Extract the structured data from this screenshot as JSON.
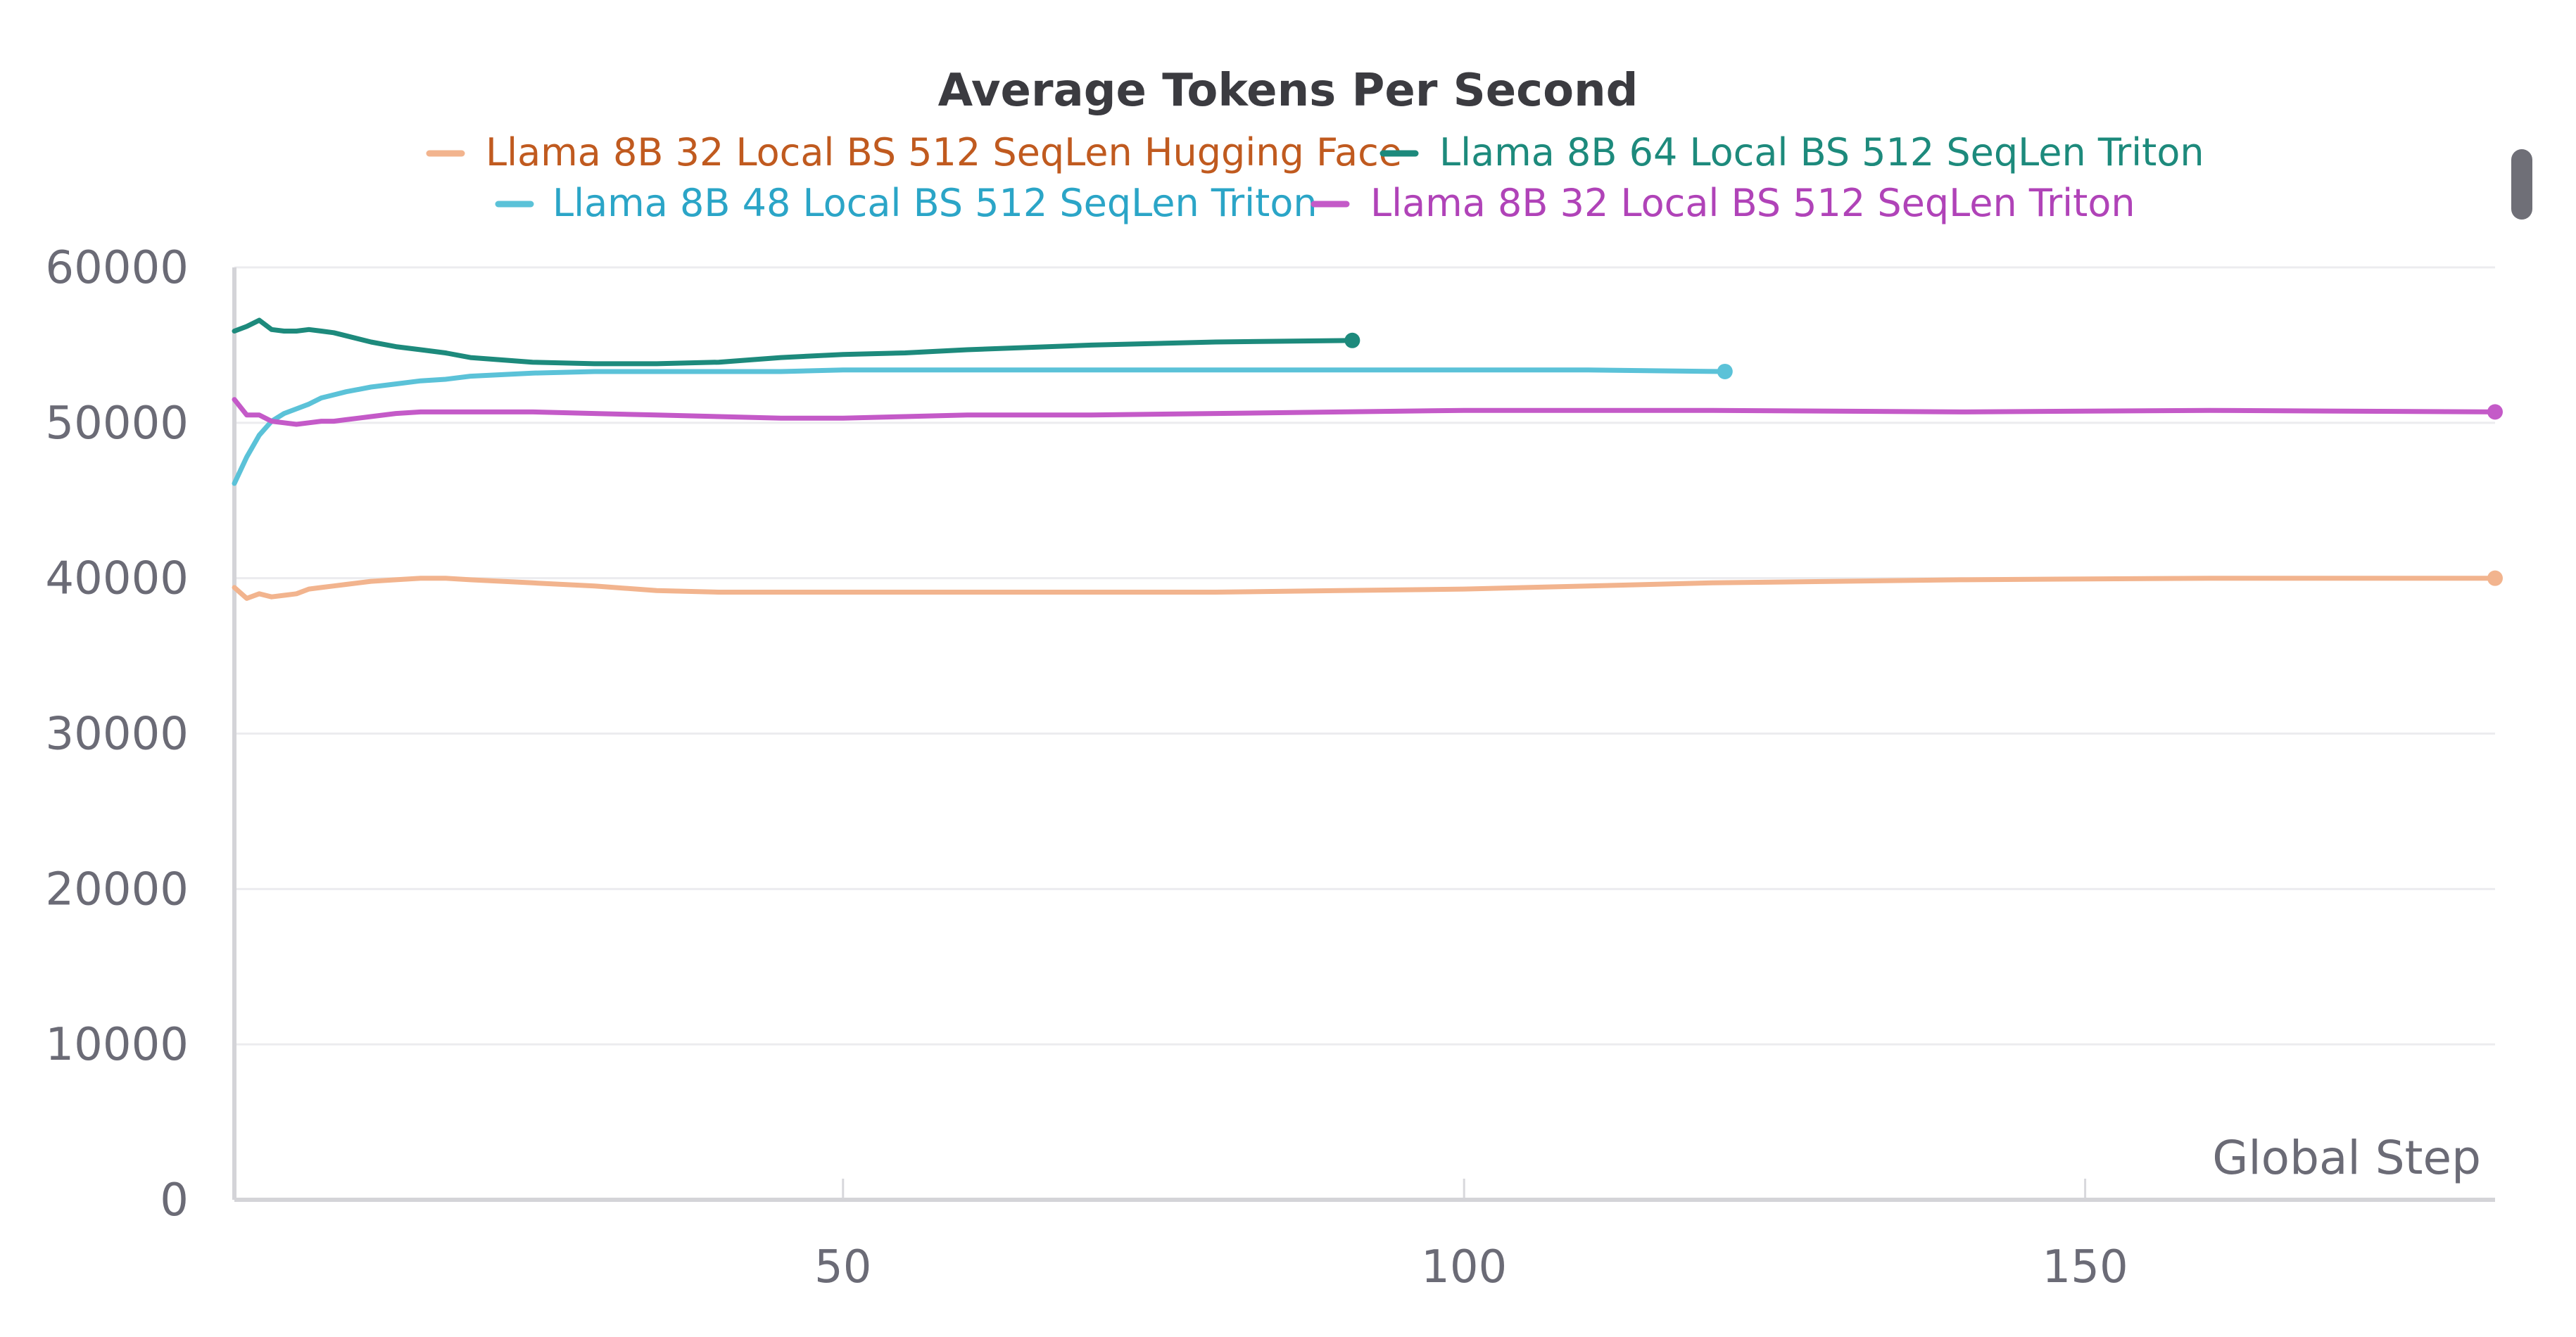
{
  "chart_data": {
    "type": "line",
    "title": "Average Tokens Per Second",
    "xlabel": "Global Step",
    "ylabel": "",
    "xlim": [
      1,
      183
    ],
    "ylim": [
      0,
      60000
    ],
    "x_ticks": [
      50,
      100,
      150
    ],
    "y_ticks": [
      0,
      10000,
      20000,
      30000,
      40000,
      50000,
      60000
    ],
    "grid": true,
    "legend_position": "top-center",
    "series": [
      {
        "name": "Llama 8B 32 Local BS 512 SeqLen Hugging Face",
        "color": "#f2b48e",
        "legend_text_color": "#c05a1f",
        "x": [
          1,
          2,
          3,
          4,
          5,
          6,
          7,
          8,
          9,
          10,
          12,
          14,
          16,
          18,
          20,
          25,
          30,
          35,
          40,
          45,
          50,
          60,
          70,
          80,
          90,
          100,
          120,
          140,
          160,
          183
        ],
        "y": [
          39400,
          38700,
          39000,
          38800,
          38900,
          39000,
          39300,
          39400,
          39500,
          39600,
          39800,
          39900,
          40000,
          40000,
          39900,
          39700,
          39500,
          39200,
          39100,
          39100,
          39100,
          39100,
          39100,
          39100,
          39200,
          39300,
          39700,
          39900,
          40000,
          40000
        ]
      },
      {
        "name": "Llama 8B 64 Local BS 512 SeqLen Triton",
        "color": "#1d8a7c",
        "legend_text_color": "#1d8a7c",
        "x": [
          1,
          2,
          3,
          4,
          5,
          6,
          7,
          8,
          9,
          10,
          12,
          14,
          16,
          18,
          20,
          25,
          30,
          35,
          40,
          45,
          50,
          55,
          60,
          70,
          80,
          91
        ],
        "y": [
          55900,
          56200,
          56600,
          56000,
          55900,
          55900,
          56000,
          55900,
          55800,
          55600,
          55200,
          54900,
          54700,
          54500,
          54200,
          53900,
          53800,
          53800,
          53900,
          54200,
          54400,
          54500,
          54700,
          55000,
          55200,
          55300
        ]
      },
      {
        "name": "Llama 8B 48 Local BS 512 SeqLen Triton",
        "color": "#5bc2d8",
        "legend_text_color": "#2ba5c7",
        "x": [
          1,
          2,
          3,
          4,
          5,
          6,
          7,
          8,
          9,
          10,
          12,
          14,
          16,
          18,
          20,
          25,
          30,
          35,
          40,
          45,
          50,
          60,
          70,
          80,
          90,
          100,
          110,
          121
        ],
        "y": [
          46100,
          47800,
          49200,
          50100,
          50600,
          50900,
          51200,
          51600,
          51800,
          52000,
          52300,
          52500,
          52700,
          52800,
          53000,
          53200,
          53300,
          53300,
          53300,
          53300,
          53400,
          53400,
          53400,
          53400,
          53400,
          53400,
          53400,
          53300
        ]
      },
      {
        "name": "Llama 8B 32 Local BS 512 SeqLen Triton",
        "color": "#c45ac8",
        "legend_text_color": "#b043b8",
        "x": [
          1,
          2,
          3,
          4,
          5,
          6,
          7,
          8,
          9,
          10,
          12,
          14,
          16,
          18,
          20,
          25,
          30,
          35,
          40,
          45,
          50,
          55,
          60,
          70,
          80,
          90,
          100,
          120,
          140,
          160,
          183
        ],
        "y": [
          51500,
          50500,
          50500,
          50100,
          50000,
          49900,
          50000,
          50100,
          50100,
          50200,
          50400,
          50600,
          50700,
          50700,
          50700,
          50700,
          50600,
          50500,
          50400,
          50300,
          50300,
          50400,
          50500,
          50500,
          50600,
          50700,
          50800,
          50800,
          50700,
          50800,
          50700
        ]
      }
    ]
  }
}
